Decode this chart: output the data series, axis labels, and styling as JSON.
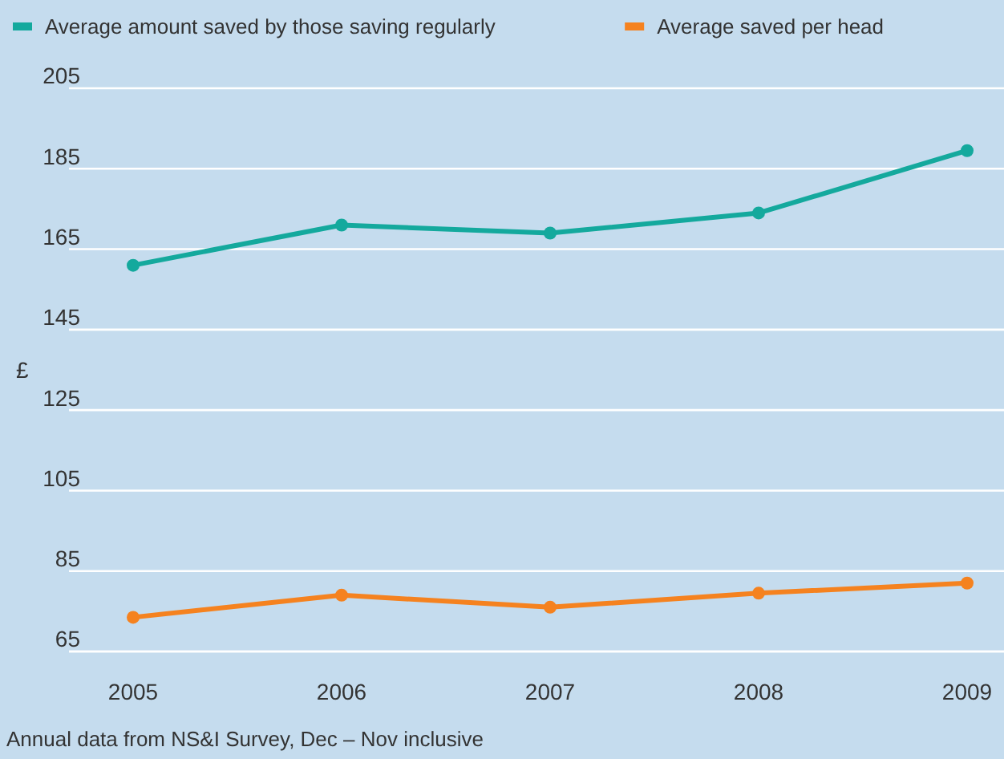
{
  "chart_data": {
    "type": "line",
    "categories": [
      "2005",
      "2006",
      "2007",
      "2008",
      "2009"
    ],
    "series": [
      {
        "name": "Average amount saved by those saving regularly",
        "color": "#14a99d",
        "values": [
          161,
          171,
          169,
          174,
          189.5
        ]
      },
      {
        "name": "Average saved per head",
        "color": "#f5821f",
        "values": [
          73.5,
          79,
          76,
          79.5,
          82
        ]
      }
    ],
    "ylabel": "£",
    "ylim": [
      65,
      205
    ],
    "yticks": [
      65,
      85,
      105,
      125,
      145,
      165,
      185,
      205
    ],
    "grid": "y",
    "legend": "top left",
    "marker": "circle",
    "line_style": "solid",
    "annotations": [
      "Annual data from NS&I Survey, Dec – Nov inclusive"
    ]
  }
}
